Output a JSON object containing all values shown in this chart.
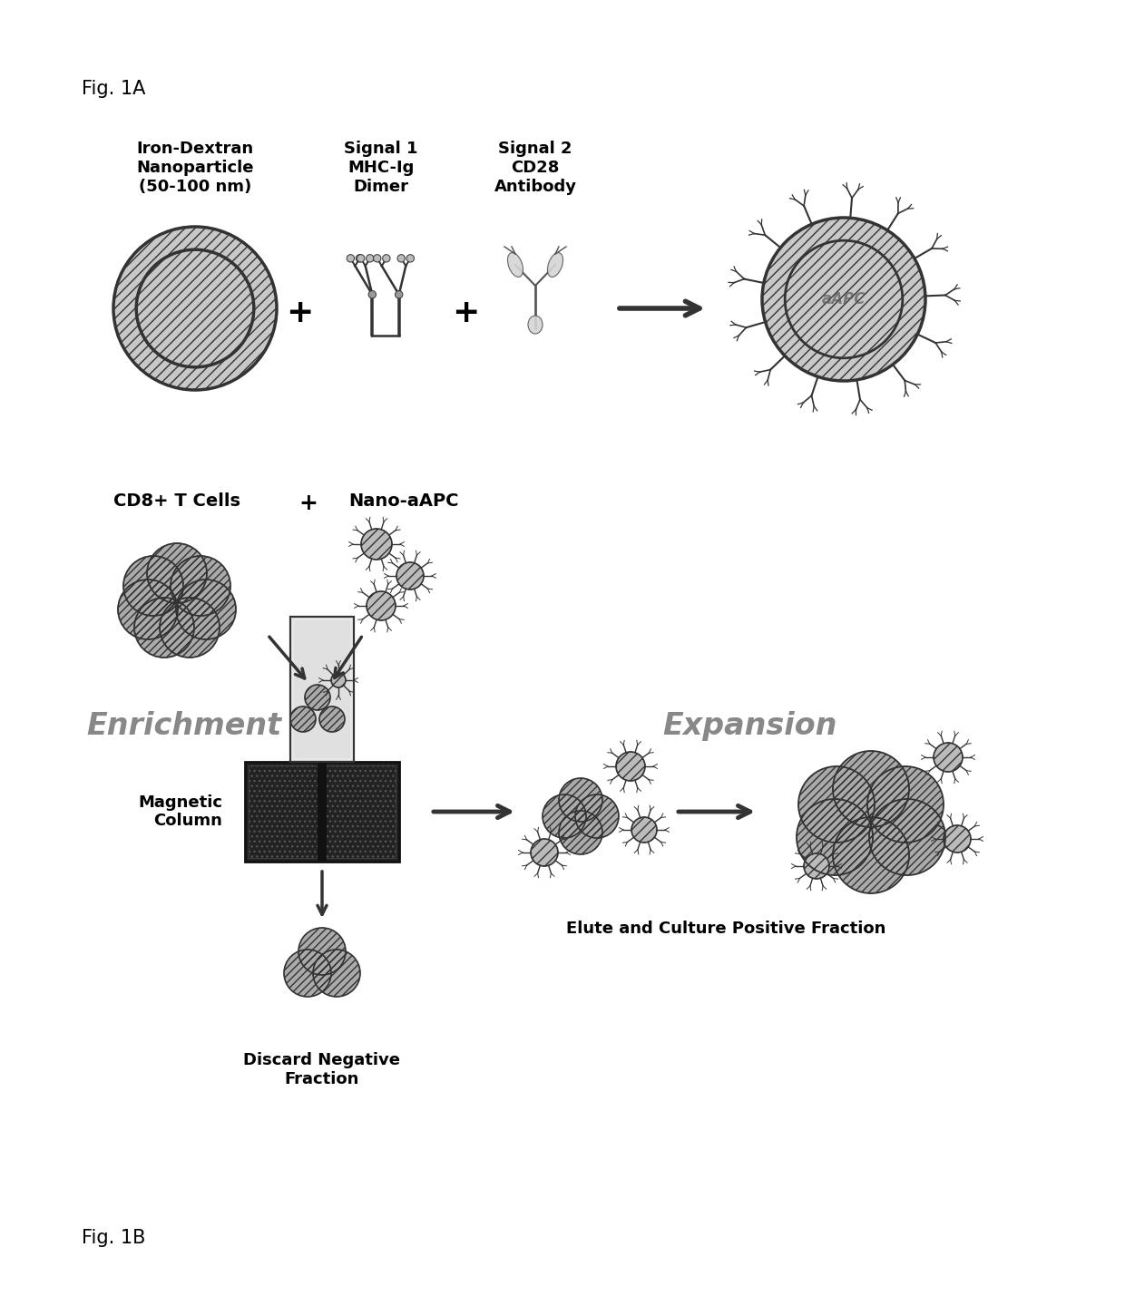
{
  "fig_label_1a": "Fig. 1A",
  "fig_label_1b": "Fig. 1B",
  "label_iron_dextran": "Iron-Dextran\nNanoparticle\n(50-100 nm)",
  "label_signal1": "Signal 1\nMHC-Ig\nDimer",
  "label_signal2": "Signal 2\nCD28\nAntibody",
  "label_cd8": "CD8+ T Cells",
  "label_nano": "Nano-aAPC",
  "label_enrichment": "Enrichment",
  "label_expansion": "Expansion",
  "label_magnetic": "Magnetic\nColumn",
  "label_discard": "Discard Negative\nFraction",
  "label_elute": "Elute and Culture Positive Fraction",
  "label_aapc": "aAPC",
  "bg_color": "#ffffff",
  "text_color": "#000000",
  "gray_dark": "#333333",
  "gray_medium": "#888888",
  "gray_light": "#bbbbbb",
  "gray_fill": "#c0c0c0",
  "cell_fill": "#aaaaaa",
  "enrichment_color": "#888888",
  "expansion_color": "#888888"
}
